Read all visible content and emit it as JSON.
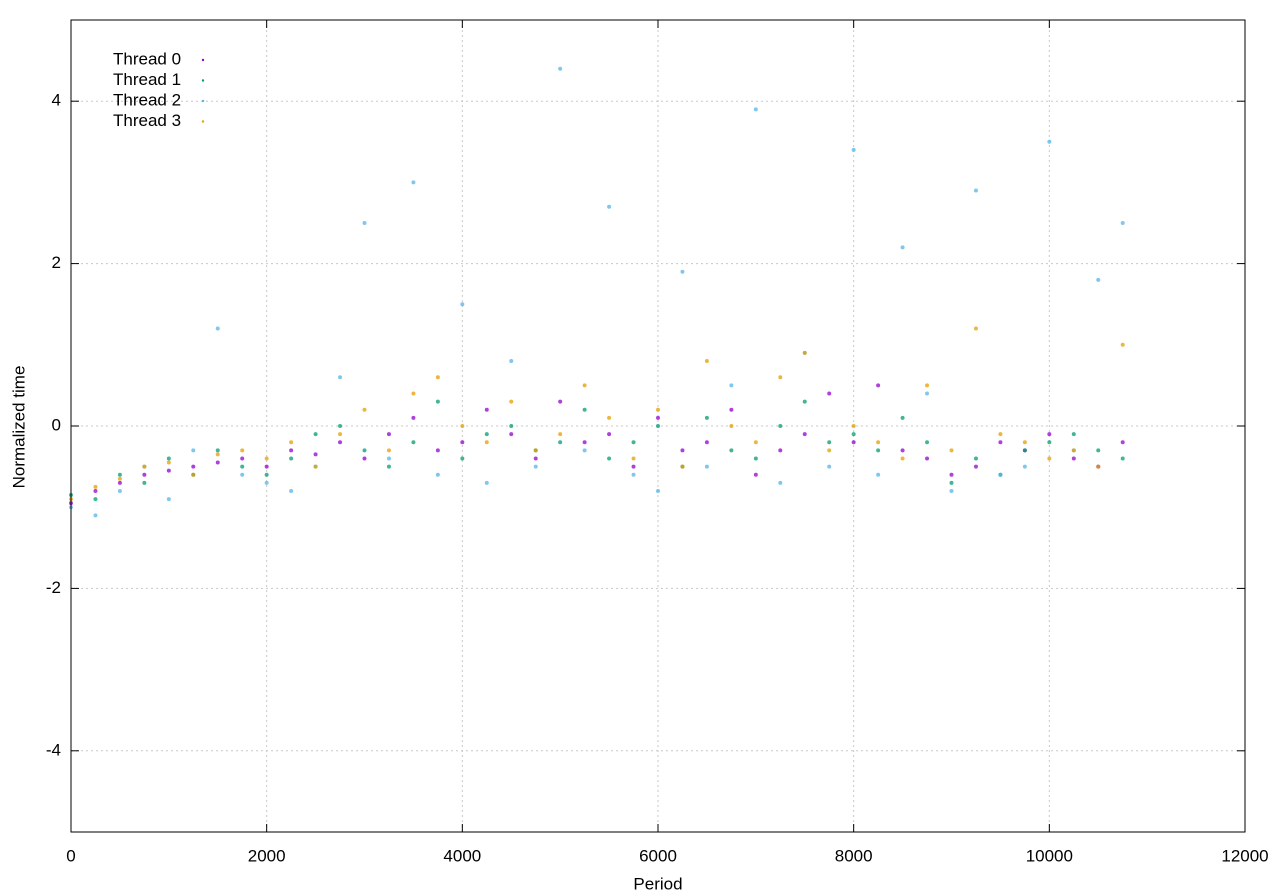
{
  "chart_data": {
    "type": "scatter",
    "x_label": "Period",
    "y_label": "Normalized time",
    "xlim": [
      0,
      12000
    ],
    "ylim": [
      -5,
      5
    ],
    "xticks": [
      0,
      2000,
      4000,
      6000,
      8000,
      10000,
      12000
    ],
    "yticks": [
      -4,
      -2,
      0,
      2,
      4
    ],
    "grid": true,
    "legend": "upper-left",
    "x": [
      0,
      250,
      500,
      750,
      1000,
      1250,
      1500,
      1750,
      2000,
      2250,
      2500,
      2750,
      3000,
      3250,
      3500,
      3750,
      4000,
      4250,
      4500,
      4750,
      5000,
      5250,
      5500,
      5750,
      6000,
      6250,
      6500,
      6750,
      7000,
      7250,
      7500,
      7750,
      8000,
      8250,
      8500,
      8750,
      9000,
      9250,
      9500,
      9750,
      10000,
      10250,
      10500,
      10750
    ],
    "series": [
      {
        "name": "Thread 0",
        "color": "#9400d3",
        "values": [
          -0.95,
          -0.8,
          -0.7,
          -0.6,
          -0.55,
          -0.5,
          -0.45,
          -0.4,
          -0.5,
          -0.3,
          -0.35,
          -0.2,
          -0.4,
          -0.1,
          0.1,
          -0.3,
          -0.2,
          0.2,
          -0.1,
          -0.4,
          0.3,
          -0.2,
          -0.1,
          -0.5,
          0.1,
          -0.3,
          -0.2,
          0.2,
          -0.6,
          -0.3,
          -0.1,
          0.4,
          -0.2,
          0.5,
          -0.3,
          -0.4,
          -0.6,
          -0.5,
          -0.2,
          -0.3,
          -0.1,
          -0.4,
          -0.5,
          -0.2
        ]
      },
      {
        "name": "Thread 1",
        "color": "#009e73",
        "values": [
          -0.85,
          -0.9,
          -0.6,
          -0.7,
          -0.4,
          -0.6,
          -0.3,
          -0.5,
          -0.6,
          -0.4,
          -0.1,
          0.0,
          -0.3,
          -0.5,
          -0.2,
          0.3,
          -0.4,
          -0.1,
          0.0,
          -0.3,
          -0.2,
          0.2,
          -0.4,
          -0.2,
          0.0,
          -0.5,
          0.1,
          -0.3,
          -0.4,
          0.0,
          0.3,
          -0.2,
          -0.1,
          -0.3,
          0.1,
          -0.2,
          -0.7,
          -0.4,
          -0.6,
          -0.3,
          -0.2,
          -0.1,
          -0.3,
          -0.4
        ]
      },
      {
        "name": "Thread 2",
        "color": "#56b4e9",
        "values": [
          -1.0,
          -1.1,
          -0.8,
          -0.5,
          -0.9,
          -0.3,
          1.2,
          -0.6,
          -0.7,
          -0.8,
          -0.5,
          0.6,
          2.5,
          -0.4,
          3.0,
          -0.6,
          1.5,
          -0.7,
          0.8,
          -0.5,
          4.4,
          -0.3,
          2.7,
          -0.6,
          -0.8,
          1.9,
          -0.5,
          0.5,
          3.9,
          -0.7,
          0.9,
          -0.5,
          3.4,
          -0.6,
          2.2,
          0.4,
          -0.8,
          2.9,
          -0.6,
          -0.5,
          3.5,
          -0.3,
          1.8,
          2.5
        ]
      },
      {
        "name": "Thread 3",
        "color": "#e69f00",
        "values": [
          -0.9,
          -0.75,
          -0.65,
          -0.5,
          -0.45,
          -0.6,
          -0.35,
          -0.3,
          -0.4,
          -0.2,
          -0.5,
          -0.1,
          0.2,
          -0.3,
          0.4,
          0.6,
          0.0,
          -0.2,
          0.3,
          -0.3,
          -0.1,
          0.5,
          0.1,
          -0.4,
          0.2,
          -0.5,
          0.8,
          0.0,
          -0.2,
          0.6,
          0.9,
          -0.3,
          0.0,
          -0.2,
          -0.4,
          0.5,
          -0.3,
          1.2,
          -0.1,
          -0.2,
          -0.4,
          -0.3,
          -0.5,
          1.0
        ]
      }
    ]
  }
}
